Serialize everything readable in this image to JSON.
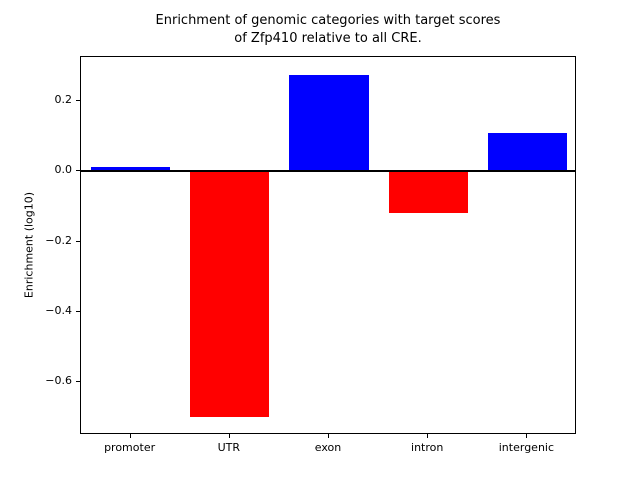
{
  "figure": {
    "background": "#ffffff",
    "axes_color": "#000000"
  },
  "chart_data": {
    "type": "bar",
    "title": "Enrichment of genomic categories with target scores of Zfp410 relative to all CRE.",
    "title_lines": [
      "Enrichment of genomic categories with target scores",
      "of Zfp410 relative to all CRE."
    ],
    "xlabel": "",
    "ylabel": "Enrichment (log10)",
    "categories": [
      "promoter",
      "UTR",
      "exon",
      "intron",
      "intergenic"
    ],
    "values": [
      0.013,
      -0.7,
      0.275,
      -0.12,
      0.11
    ],
    "bar_colors": [
      "#0000ff",
      "#ff0000",
      "#0000ff",
      "#ff0000",
      "#0000ff"
    ],
    "positive_color": "#0000ff",
    "negative_color": "#ff0000",
    "yticks": [
      0.2,
      0.0,
      -0.2,
      -0.4,
      -0.6
    ],
    "ylim": [
      -0.75,
      0.325
    ],
    "zero_line": true,
    "grid": false
  }
}
